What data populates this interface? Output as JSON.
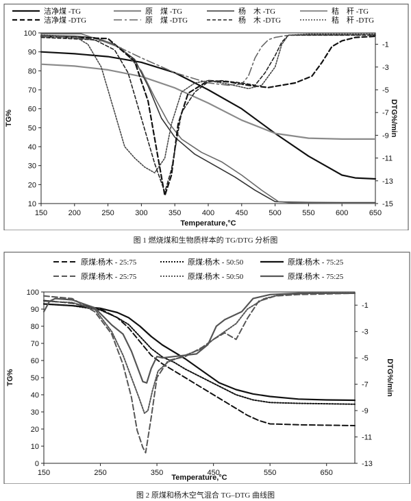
{
  "chart_data": [
    {
      "type": "line",
      "caption": "图 1 燃烧煤和生物质样本的 TG/DTG 分析图",
      "xlabel": "Temperature,°C",
      "ylabel": "TG%",
      "y2label": "DTG%/min",
      "xlim": [
        150,
        650
      ],
      "ylim": [
        10,
        100
      ],
      "y2lim": [
        -15,
        0
      ],
      "xticks": [
        "150",
        "200",
        "250",
        "300",
        "350",
        "400",
        "450",
        "500",
        "550",
        "600",
        "650"
      ],
      "yticks": [
        "10",
        "20",
        "30",
        "40",
        "50",
        "60",
        "70",
        "80",
        "90",
        "100"
      ],
      "y2ticks": [
        "-1",
        "-3",
        "-5",
        "-7",
        "-9",
        "-11",
        "-13",
        "-15"
      ],
      "series": [
        {
          "name": "洁净煤",
          "suffix": "-TG",
          "axis": "left",
          "color": "#111111",
          "dash": "solid",
          "width": 2.2,
          "x": [
            150,
            200,
            250,
            300,
            350,
            400,
            450,
            500,
            550,
            600,
            620,
            650
          ],
          "y": [
            90,
            89,
            87.5,
            84.5,
            79,
            70,
            60,
            47,
            35,
            25,
            23.5,
            23
          ]
        },
        {
          "name": "原　煤",
          "suffix": "-TG",
          "axis": "left",
          "color": "#8a8a8a",
          "dash": "solid",
          "width": 2.2,
          "x": [
            150,
            200,
            250,
            300,
            350,
            400,
            450,
            500,
            550,
            600,
            650
          ],
          "y": [
            83.5,
            82.5,
            80.5,
            77,
            71,
            63,
            54,
            47,
            44.5,
            44,
            44
          ]
        },
        {
          "name": "杨　木",
          "suffix": "-TG",
          "axis": "left",
          "color": "#333333",
          "dash": "solid",
          "width": 1.6,
          "x": [
            150,
            200,
            230,
            260,
            290,
            310,
            330,
            350,
            380,
            410,
            440,
            470,
            500,
            520,
            550,
            600,
            650
          ],
          "y": [
            98.5,
            98.3,
            97.5,
            94,
            86,
            72,
            55,
            45,
            36,
            30,
            24,
            17,
            11,
            10.8,
            10.6,
            10.5,
            10.5
          ]
        },
        {
          "name": "秸　秆",
          "suffix": "-TG",
          "axis": "left",
          "color": "#6a6a6a",
          "dash": "solid",
          "width": 1.6,
          "x": [
            150,
            210,
            240,
            270,
            300,
            320,
            340,
            360,
            390,
            420,
            450,
            480,
            505,
            520,
            550,
            600,
            650
          ],
          "y": [
            99.5,
            99.5,
            96,
            92,
            80,
            66,
            53,
            44,
            37,
            32,
            25,
            17,
            11,
            10.5,
            10.3,
            10.2,
            10.2
          ]
        },
        {
          "name": "洁净煤",
          "suffix": "-DTG",
          "axis": "right",
          "color": "#111111",
          "dash": "7,4",
          "width": 2.2,
          "x": [
            150,
            250,
            290,
            310,
            325,
            335,
            345,
            355,
            370,
            400,
            430,
            460,
            490,
            530,
            555,
            570,
            585,
            600,
            620,
            650
          ],
          "y": [
            -0.3,
            -0.5,
            -2.5,
            -6,
            -11,
            -14.3,
            -12.5,
            -8,
            -5.3,
            -4.2,
            -4.3,
            -4.6,
            -4.8,
            -4.4,
            -3.8,
            -2.6,
            -1.2,
            -0.7,
            -0.4,
            -0.3
          ]
        },
        {
          "name": "原　煤",
          "suffix": "-DTG",
          "axis": "right",
          "color": "#666666",
          "dash": "12,4,3,4",
          "width": 1.6,
          "x": [
            150,
            200,
            250,
            300,
            350,
            400,
            430,
            450,
            460,
            470,
            480,
            490,
            500,
            520,
            550,
            650
          ],
          "y": [
            -0.3,
            -0.4,
            -0.8,
            -2.2,
            -3.5,
            -4.4,
            -4.6,
            -4.5,
            -3.8,
            -2.2,
            -1.2,
            -0.6,
            -0.4,
            -0.2,
            -0.2,
            -0.2
          ]
        },
        {
          "name": "杨　木",
          "suffix": "-DTG",
          "axis": "right",
          "color": "#222222",
          "dash": "5,3",
          "width": 1.6,
          "x": [
            150,
            230,
            260,
            280,
            300,
            320,
            335,
            345,
            360,
            380,
            400,
            420,
            450,
            470,
            485,
            500,
            510,
            520,
            550,
            650
          ],
          "y": [
            -0.4,
            -0.6,
            -1.5,
            -3.5,
            -7.5,
            -11.5,
            -14,
            -12,
            -7,
            -5.2,
            -4.3,
            -4.2,
            -4.4,
            -4.6,
            -3.5,
            -2,
            -0.8,
            -0.2,
            -0.2,
            -0.2
          ]
        },
        {
          "name": "秸　秆",
          "suffix": "-DTG",
          "axis": "right",
          "color": "#444444",
          "dash": "2,2",
          "width": 1.6,
          "x": [
            150,
            200,
            220,
            240,
            260,
            275,
            290,
            305,
            320,
            335,
            345,
            360,
            380,
            400,
            430,
            460,
            480,
            500,
            510,
            520,
            550,
            650
          ],
          "y": [
            -0.2,
            -0.3,
            -1,
            -3,
            -7,
            -10,
            -11,
            -11.8,
            -12.3,
            -11,
            -8,
            -5.2,
            -4.4,
            -4.2,
            -4.5,
            -4.9,
            -4.6,
            -3,
            -1,
            -0.2,
            -0.1,
            -0.1
          ]
        }
      ]
    },
    {
      "type": "line",
      "caption": "图 2 原煤和杨木空气混合 TG–DTG 曲线图",
      "xlabel": "Temperature,°C",
      "ylabel": "TG%",
      "y2label": "DTG%/min",
      "xlim": [
        150,
        700
      ],
      "ylim": [
        0,
        100
      ],
      "y2lim": [
        -13,
        0
      ],
      "xticks": [
        "150",
        "250",
        "350",
        "450",
        "550",
        "650"
      ],
      "yticks": [
        "0",
        "10",
        "20",
        "30",
        "40",
        "50",
        "60",
        "70",
        "80",
        "90",
        "100"
      ],
      "y2ticks": [
        "-1",
        "-3",
        "-5",
        "-7",
        "-9",
        "-11",
        "-13"
      ],
      "series": [
        {
          "name": "原煤:杨木",
          "suffix": "- 25:75",
          "axis": "left",
          "color": "#111111",
          "dash": "8,4",
          "width": 2,
          "x": [
            150,
            200,
            250,
            280,
            300,
            320,
            340,
            360,
            380,
            400,
            430,
            460,
            490,
            510,
            530,
            550,
            600,
            700
          ],
          "y": [
            95,
            93.5,
            90,
            85,
            79,
            71,
            63,
            58,
            54,
            50,
            44,
            38,
            32,
            28,
            25,
            23,
            22.5,
            22
          ]
        },
        {
          "name": "原煤:杨木",
          "suffix": "- 50:50",
          "axis": "left",
          "color": "#111111",
          "dash": "2,2",
          "width": 2,
          "x": [
            150,
            200,
            250,
            280,
            300,
            320,
            340,
            360,
            380,
            400,
            430,
            460,
            490,
            520,
            550,
            600,
            700
          ],
          "y": [
            93,
            92,
            89.5,
            85,
            81,
            74,
            67,
            62,
            59,
            55,
            50,
            45,
            40,
            37,
            35.5,
            35,
            34.5
          ]
        },
        {
          "name": "原煤:杨木",
          "suffix": "- 75:25",
          "axis": "left",
          "color": "#111111",
          "dash": "solid",
          "width": 2.2,
          "x": [
            150,
            200,
            250,
            280,
            300,
            320,
            340,
            360,
            380,
            400,
            430,
            460,
            490,
            520,
            550,
            600,
            650,
            700
          ],
          "y": [
            93,
            92,
            90.5,
            88,
            85,
            80,
            74,
            69,
            65,
            61,
            54,
            47,
            43,
            40.5,
            39,
            37.5,
            37,
            36.8
          ]
        },
        {
          "name": "原煤:杨木",
          "suffix": "- 25:75",
          "axis": "right",
          "color": "#555555",
          "dash": "8,4",
          "width": 2,
          "x": [
            150,
            200,
            240,
            270,
            290,
            305,
            315,
            325,
            330,
            340,
            350,
            370,
            400,
            430,
            450,
            470,
            490,
            510,
            530,
            560,
            600,
            700
          ],
          "y": [
            -0.3,
            -0.5,
            -1.5,
            -3.2,
            -5.5,
            -8,
            -10.5,
            -11.8,
            -12.2,
            -9.5,
            -6.5,
            -5.2,
            -4.9,
            -4.2,
            -3.6,
            -3.1,
            -3.6,
            -2,
            -0.7,
            -0.3,
            -0.2,
            -0.1
          ]
        },
        {
          "name": "原煤:杨木",
          "suffix": "- 50:50",
          "axis": "right",
          "color": "#555555",
          "dash": "2,2",
          "width": 2,
          "x": [
            150,
            200,
            240,
            270,
            290,
            305,
            318,
            328,
            334,
            342,
            352,
            370,
            400,
            430,
            450,
            470,
            490,
            510,
            540,
            570,
            620,
            700
          ],
          "y": [
            -0.7,
            -0.8,
            -1.3,
            -3,
            -4.8,
            -6.5,
            -8,
            -9.2,
            -9,
            -7.5,
            -6,
            -5.3,
            -4.8,
            -4.3,
            -3.6,
            -3,
            -2.4,
            -1.3,
            -0.5,
            -0.2,
            -0.1,
            -0.1
          ]
        },
        {
          "name": "原煤:杨木",
          "suffix": "- 75:25",
          "axis": "right",
          "color": "#555555",
          "dash": "solid",
          "width": 2.2,
          "x": [
            150,
            160,
            170,
            200,
            240,
            270,
            290,
            305,
            318,
            325,
            332,
            340,
            350,
            360,
            380,
            400,
            420,
            440,
            455,
            470,
            480,
            500,
            520,
            550,
            600,
            700
          ],
          "y": [
            -1.5,
            -0.7,
            -0.5,
            -0.6,
            -1.2,
            -2.5,
            -3.2,
            -4.5,
            -6,
            -6.8,
            -6.9,
            -5.8,
            -4.9,
            -5,
            -4.9,
            -4.8,
            -4.7,
            -4,
            -2.6,
            -2.1,
            -1.9,
            -1.5,
            -0.5,
            -0.2,
            -0.1,
            -0.1
          ]
        }
      ]
    }
  ]
}
